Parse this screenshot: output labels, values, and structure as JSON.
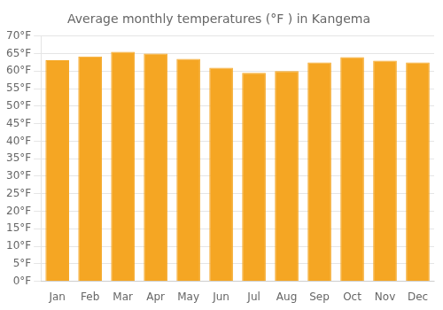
{
  "chart_data": {
    "type": "bar",
    "title": "Average monthly temperatures (°F ) in Kangema",
    "categories": [
      "Jan",
      "Feb",
      "Mar",
      "Apr",
      "May",
      "Jun",
      "Jul",
      "Aug",
      "Sep",
      "Oct",
      "Nov",
      "Dec"
    ],
    "values": [
      63.1,
      64.2,
      65.5,
      65.0,
      63.5,
      61.0,
      59.5,
      60.0,
      62.5,
      64.0,
      63.0,
      62.5
    ],
    "color": "#F5A623",
    "ylim": [
      0,
      70
    ],
    "yticks": [
      {
        "value": 0,
        "label": "0°F"
      },
      {
        "value": 5,
        "label": "5°F"
      },
      {
        "value": 10,
        "label": "10°F"
      },
      {
        "value": 15,
        "label": "15°F"
      },
      {
        "value": 20,
        "label": "20°F"
      },
      {
        "value": 25,
        "label": "25°F"
      },
      {
        "value": 30,
        "label": "30°F"
      },
      {
        "value": 35,
        "label": "35°F"
      },
      {
        "value": 40,
        "label": "40°F"
      },
      {
        "value": 45,
        "label": "45°F"
      },
      {
        "value": 50,
        "label": "50°F"
      },
      {
        "value": 55,
        "label": "55°F"
      },
      {
        "value": 60,
        "label": "60°F"
      },
      {
        "value": 65,
        "label": "65°F"
      },
      {
        "value": 70,
        "label": "70°F"
      }
    ],
    "grid": true
  }
}
